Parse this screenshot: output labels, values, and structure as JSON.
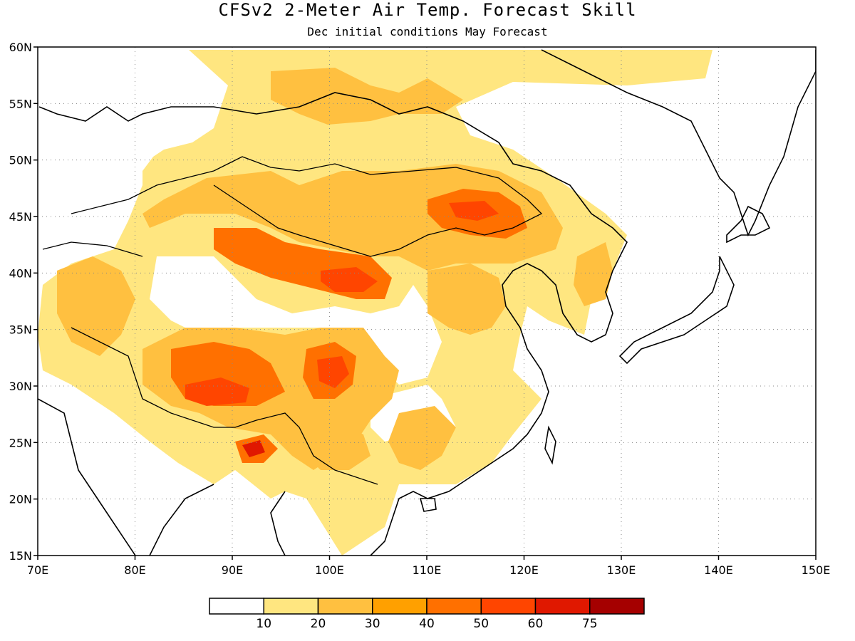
{
  "title": "CFSv2 2-Meter Air Temp. Forecast Skill",
  "subtitle": "Dec initial conditions  May Forecast",
  "map": {
    "lon_range": [
      70,
      150
    ],
    "lat_range": [
      15,
      60
    ],
    "lon_ticks": [
      "70E",
      "80E",
      "90E",
      "100E",
      "110E",
      "120E",
      "130E",
      "140E",
      "150E"
    ],
    "lat_ticks": [
      "15N",
      "20N",
      "25N",
      "30N",
      "35N",
      "40N",
      "45N",
      "50N",
      "55N",
      "60N"
    ],
    "grid": "dotted",
    "colors": {
      "c10": "#ffe680",
      "c20": "#ffc040",
      "c30": "#ffa000",
      "c40": "#ff7000",
      "c50": "#ff4500",
      "c60": "#e01800",
      "c75": "#a50000"
    }
  },
  "legend": {
    "bins": [
      {
        "label": "",
        "color": "#ffffff"
      },
      {
        "label": "10",
        "color": "#ffe680"
      },
      {
        "label": "20",
        "color": "#ffc040"
      },
      {
        "label": "30",
        "color": "#ffa000"
      },
      {
        "label": "40",
        "color": "#ff7000"
      },
      {
        "label": "50",
        "color": "#ff4500"
      },
      {
        "label": "60",
        "color": "#e01800"
      },
      {
        "label": "75",
        "color": "#a50000"
      }
    ]
  }
}
